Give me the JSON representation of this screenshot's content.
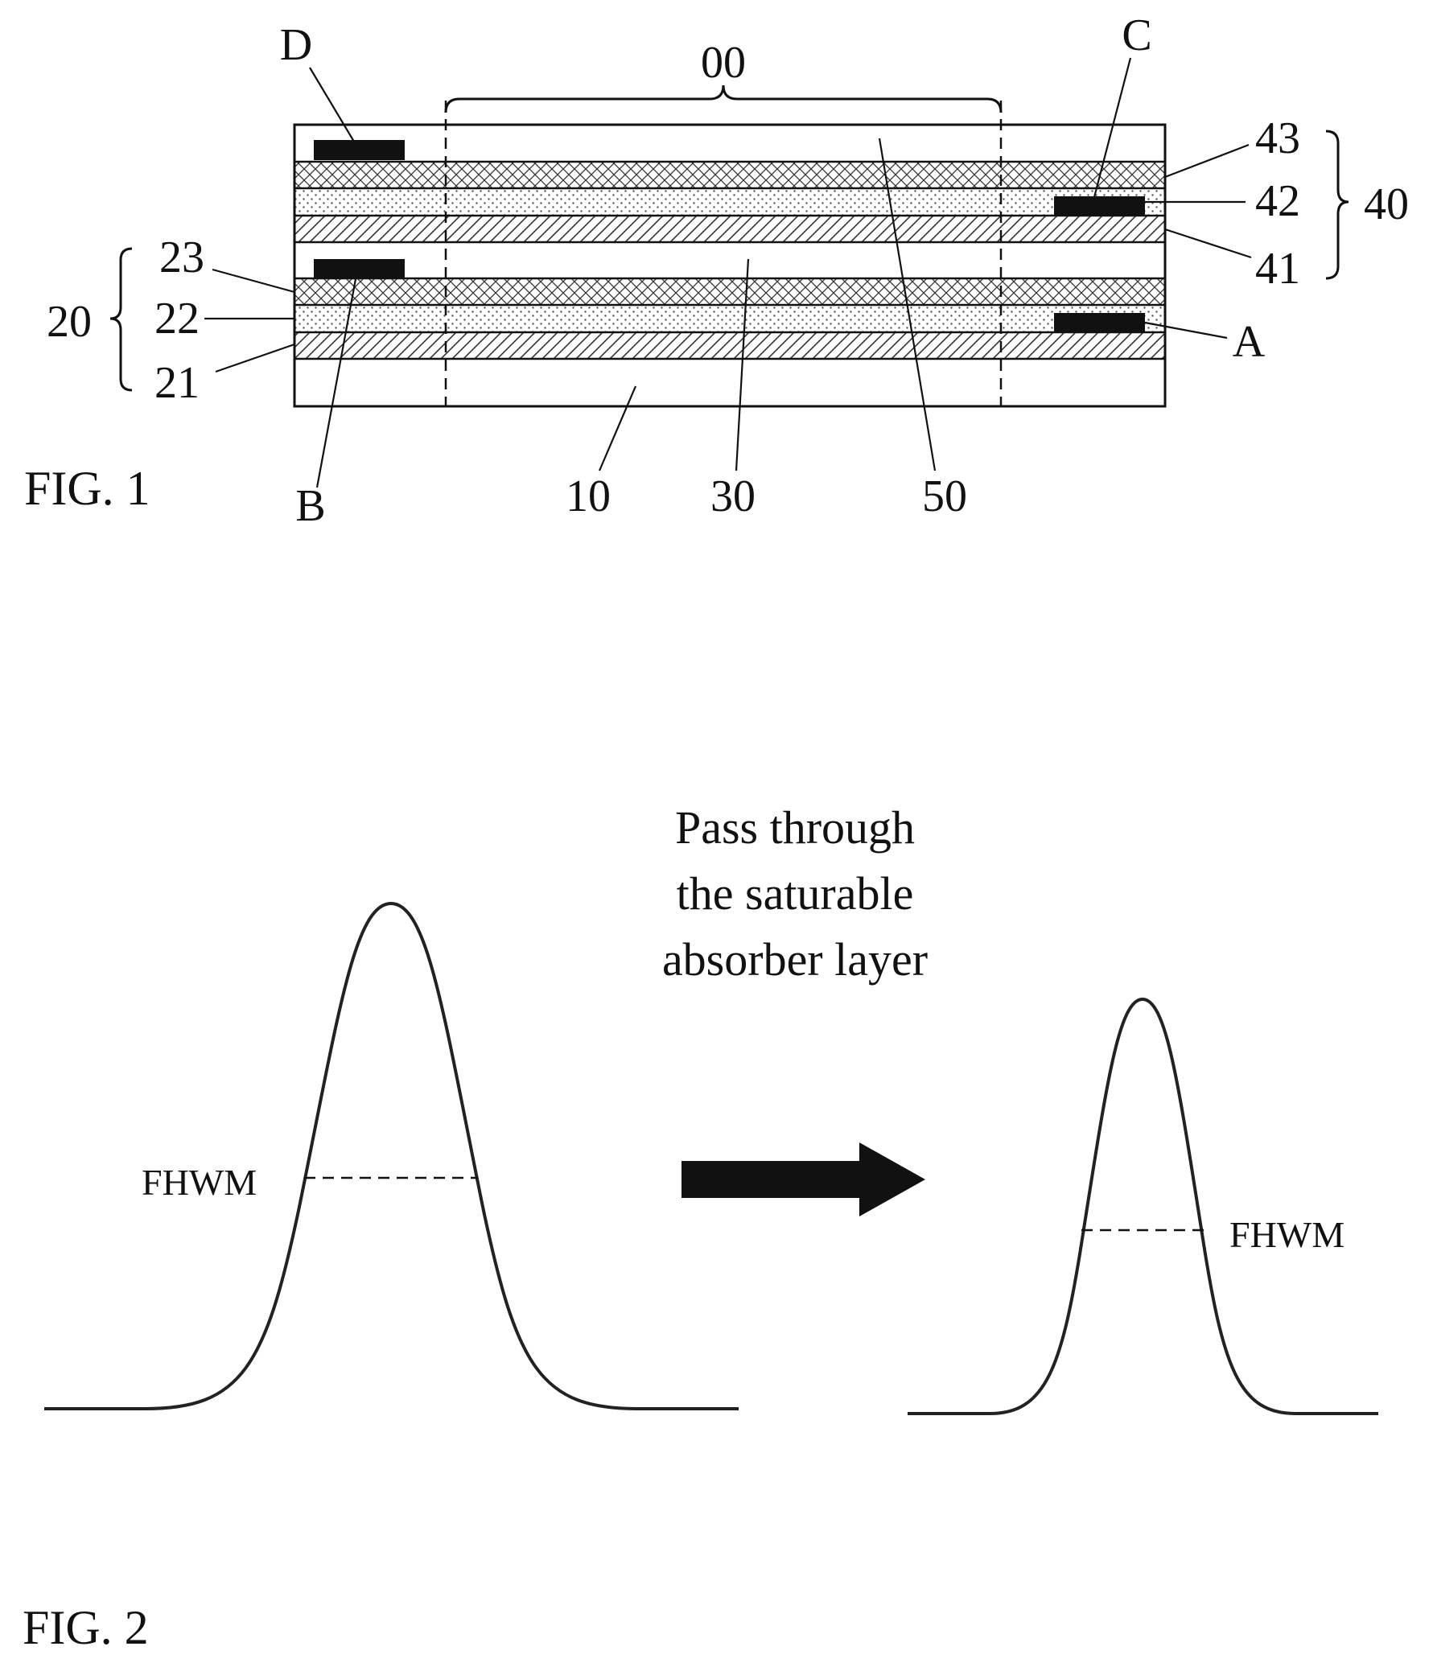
{
  "fig1": {
    "caption": "FIG. 1",
    "region_label": "00",
    "group_labels": {
      "top_stack": "40",
      "bottom_stack": "20"
    },
    "layer_labels": {
      "l43": "43",
      "l42": "42",
      "l41": "41",
      "l23": "23",
      "l22": "22",
      "l21": "21",
      "l10": "10",
      "l30": "30",
      "l50": "50"
    },
    "electrode_labels": {
      "a": "A",
      "b": "B",
      "c": "C",
      "d": "D"
    }
  },
  "fig2": {
    "caption": "FIG. 2",
    "arrow_text": [
      "Pass through",
      "the saturable",
      "absorber layer"
    ],
    "left_pulse_label": "FHWM",
    "right_pulse_label": "FHWM"
  },
  "colors": {
    "ink": "#111111",
    "background": "#ffffff",
    "electrode": "#111111"
  }
}
